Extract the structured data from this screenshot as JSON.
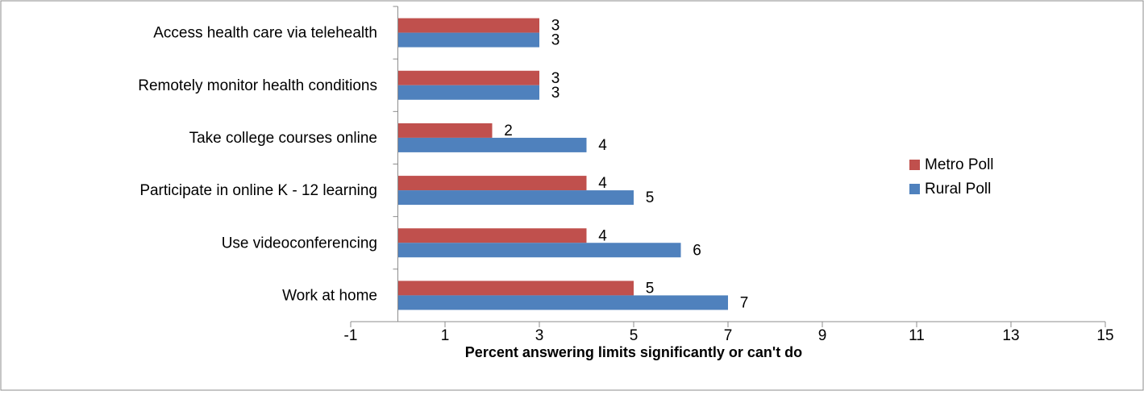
{
  "chart_data": {
    "type": "bar",
    "orientation": "horizontal",
    "title": "",
    "xlabel": "Percent answering limits significantly or can't do",
    "ylabel": "",
    "xlim": [
      -1,
      15
    ],
    "xticks": [
      -1,
      1,
      3,
      5,
      7,
      9,
      11,
      13,
      15
    ],
    "grid": false,
    "legend_position": "right",
    "categories": [
      "Access health care via telehealth",
      "Remotely monitor health conditions",
      "Take college courses online",
      "Participate in online K - 12 learning",
      "Use videoconferencing",
      "Work at home"
    ],
    "series": [
      {
        "name": "Metro Poll",
        "color": "#c0504d",
        "values": [
          3,
          3,
          2,
          4,
          4,
          5
        ]
      },
      {
        "name": "Rural Poll",
        "color": "#4f81bd",
        "values": [
          3,
          3,
          4,
          5,
          6,
          7
        ]
      }
    ]
  }
}
